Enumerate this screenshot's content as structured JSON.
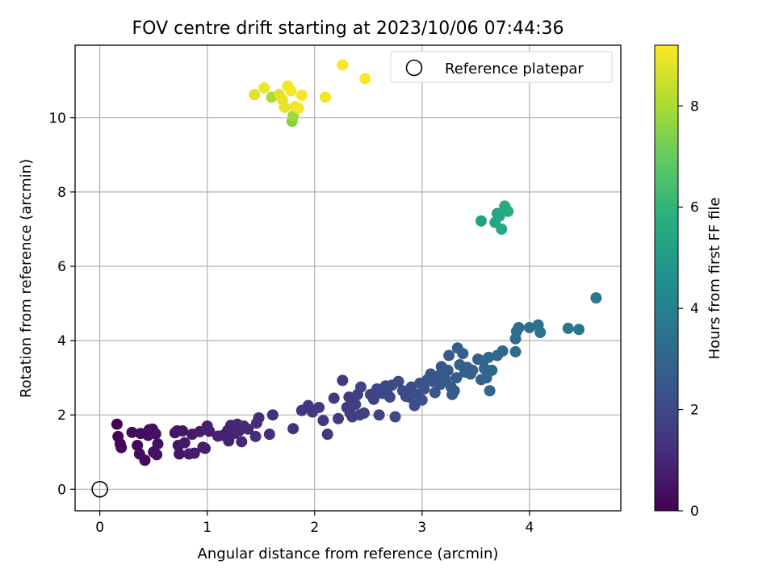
{
  "chart_data": {
    "type": "scatter",
    "title": "FOV centre drift starting at 2023/10/06 07:44:36",
    "xlabel": "Angular distance from reference (arcmin)",
    "ylabel": "Rotation from reference (arcmin)",
    "xlim": [
      -0.23,
      4.85
    ],
    "ylim": [
      -0.58,
      11.95
    ],
    "xticks": [
      0,
      1,
      2,
      3,
      4
    ],
    "yticks": [
      0,
      2,
      4,
      6,
      8,
      10
    ],
    "grid": true,
    "legend": {
      "placement": "top-right",
      "entries": [
        "Reference platepar"
      ]
    },
    "reference_point": {
      "x": 0,
      "y": 0,
      "label": "Reference platepar"
    },
    "colorbar": {
      "label": "Hours from first FF file",
      "colormap": "viridis",
      "range": [
        0,
        9.2
      ],
      "ticks": [
        0,
        2,
        4,
        6,
        8
      ]
    },
    "points": [
      [
        0.16,
        1.75,
        0.05
      ],
      [
        0.17,
        1.42,
        0.1
      ],
      [
        0.19,
        1.22,
        0.12
      ],
      [
        0.2,
        1.12,
        0.15
      ],
      [
        0.3,
        1.53,
        0.2
      ],
      [
        0.35,
        1.18,
        0.22
      ],
      [
        0.37,
        0.95,
        0.25
      ],
      [
        0.38,
        1.5,
        0.27
      ],
      [
        0.42,
        0.78,
        0.3
      ],
      [
        0.45,
        1.45,
        0.32
      ],
      [
        0.46,
        1.6,
        0.35
      ],
      [
        0.49,
        1.62,
        0.37
      ],
      [
        0.5,
        1.0,
        0.4
      ],
      [
        0.52,
        1.49,
        0.42
      ],
      [
        0.53,
        0.93,
        0.45
      ],
      [
        0.54,
        1.22,
        0.47
      ],
      [
        0.7,
        1.52,
        0.5
      ],
      [
        0.72,
        1.57,
        0.52
      ],
      [
        0.73,
        1.18,
        0.55
      ],
      [
        0.74,
        0.95,
        0.57
      ],
      [
        0.77,
        1.57,
        0.6
      ],
      [
        0.79,
        1.25,
        0.62
      ],
      [
        0.83,
        0.95,
        0.65
      ],
      [
        0.86,
        1.48,
        0.67
      ],
      [
        0.88,
        0.97,
        0.7
      ],
      [
        0.93,
        1.55,
        0.72
      ],
      [
        0.96,
        1.13,
        0.75
      ],
      [
        0.98,
        1.1,
        0.77
      ],
      [
        1.0,
        1.7,
        0.8
      ],
      [
        1.02,
        1.56,
        0.82
      ],
      [
        1.1,
        1.43,
        0.85
      ],
      [
        1.15,
        1.45,
        0.87
      ],
      [
        1.19,
        1.58,
        0.9
      ],
      [
        1.2,
        1.3,
        0.92
      ],
      [
        1.22,
        1.72,
        0.95
      ],
      [
        1.25,
        1.5,
        0.97
      ],
      [
        1.28,
        1.75,
        1.0
      ],
      [
        1.3,
        1.58,
        1.02
      ],
      [
        1.32,
        1.28,
        1.05
      ],
      [
        1.34,
        1.7,
        1.07
      ],
      [
        1.38,
        1.62,
        1.1
      ],
      [
        1.45,
        1.42,
        1.12
      ],
      [
        1.46,
        1.78,
        1.15
      ],
      [
        1.48,
        1.92,
        1.17
      ],
      [
        1.58,
        1.48,
        1.2
      ],
      [
        1.61,
        2.0,
        1.22
      ],
      [
        1.8,
        1.63,
        1.3
      ],
      [
        1.88,
        2.12,
        1.35
      ],
      [
        1.94,
        2.25,
        1.4
      ],
      [
        1.98,
        2.08,
        1.42
      ],
      [
        2.04,
        2.2,
        1.45
      ],
      [
        2.08,
        1.85,
        1.47
      ],
      [
        2.12,
        1.48,
        1.5
      ],
      [
        2.18,
        2.45,
        1.52
      ],
      [
        2.22,
        1.9,
        1.55
      ],
      [
        2.26,
        2.93,
        1.57
      ],
      [
        2.3,
        2.2,
        1.6
      ],
      [
        2.32,
        2.48,
        1.62
      ],
      [
        2.33,
        2.05,
        1.65
      ],
      [
        2.35,
        1.95,
        1.67
      ],
      [
        2.38,
        2.28,
        1.7
      ],
      [
        2.4,
        2.55,
        1.72
      ],
      [
        2.42,
        2.0,
        1.75
      ],
      [
        2.43,
        2.75,
        1.77
      ],
      [
        2.46,
        2.05,
        1.8
      ],
      [
        2.52,
        2.55,
        1.82
      ],
      [
        2.55,
        2.42,
        1.85
      ],
      [
        2.58,
        2.7,
        1.87
      ],
      [
        2.6,
        2.0,
        1.9
      ],
      [
        2.63,
        2.58,
        1.92
      ],
      [
        2.66,
        2.78,
        1.95
      ],
      [
        2.68,
        2.55,
        1.97
      ],
      [
        2.7,
        2.48,
        2.0
      ],
      [
        2.72,
        2.8,
        2.02
      ],
      [
        2.75,
        1.95,
        2.05
      ],
      [
        2.78,
        2.9,
        2.07
      ],
      [
        2.82,
        2.65,
        2.1
      ],
      [
        2.85,
        2.5,
        2.12
      ],
      [
        2.88,
        2.48,
        2.15
      ],
      [
        2.9,
        2.75,
        2.17
      ],
      [
        2.93,
        2.25,
        2.2
      ],
      [
        2.95,
        2.55,
        2.22
      ],
      [
        2.98,
        2.85,
        2.25
      ],
      [
        3.0,
        2.4,
        2.27
      ],
      [
        3.02,
        2.7,
        2.3
      ],
      [
        3.05,
        2.95,
        2.32
      ],
      [
        3.08,
        3.1,
        2.35
      ],
      [
        3.1,
        2.9,
        2.4
      ],
      [
        3.12,
        2.6,
        2.42
      ],
      [
        3.15,
        3.05,
        2.45
      ],
      [
        3.17,
        2.82,
        2.47
      ],
      [
        3.18,
        3.3,
        2.5
      ],
      [
        3.2,
        3.05,
        2.52
      ],
      [
        3.22,
        2.95,
        2.55
      ],
      [
        3.24,
        3.2,
        2.57
      ],
      [
        3.25,
        3.6,
        2.6
      ],
      [
        3.27,
        2.75,
        2.62
      ],
      [
        3.28,
        2.55,
        2.65
      ],
      [
        3.3,
        2.65,
        2.67
      ],
      [
        3.32,
        3.0,
        2.7
      ],
      [
        3.33,
        3.8,
        2.72
      ],
      [
        3.35,
        3.35,
        2.75
      ],
      [
        3.38,
        3.65,
        2.77
      ],
      [
        3.4,
        3.15,
        2.8
      ],
      [
        3.42,
        3.28,
        2.82
      ],
      [
        3.45,
        3.1,
        2.85
      ],
      [
        3.47,
        3.2,
        2.87
      ],
      [
        3.52,
        3.5,
        2.9
      ],
      [
        3.55,
        2.95,
        2.92
      ],
      [
        3.57,
        3.45,
        2.95
      ],
      [
        3.58,
        3.25,
        2.97
      ],
      [
        3.6,
        3.0,
        3.0
      ],
      [
        3.62,
        3.55,
        3.02
      ],
      [
        3.63,
        2.65,
        3.05
      ],
      [
        3.65,
        3.2,
        3.07
      ],
      [
        3.7,
        3.6,
        3.1
      ],
      [
        3.75,
        3.72,
        3.12
      ],
      [
        3.87,
        3.7,
        3.15
      ],
      [
        3.87,
        4.05,
        3.2
      ],
      [
        3.88,
        4.25,
        3.25
      ],
      [
        3.9,
        4.35,
        3.3
      ],
      [
        4.0,
        4.35,
        3.35
      ],
      [
        4.08,
        4.42,
        3.4
      ],
      [
        4.1,
        4.22,
        3.45
      ],
      [
        4.36,
        4.33,
        3.55
      ],
      [
        4.46,
        4.3,
        3.6
      ],
      [
        4.62,
        5.15,
        3.7
      ],
      [
        3.55,
        7.22,
        5.3
      ],
      [
        3.68,
        7.18,
        5.35
      ],
      [
        3.7,
        7.42,
        5.4
      ],
      [
        3.72,
        7.35,
        5.45
      ],
      [
        3.74,
        7.0,
        5.5
      ],
      [
        3.77,
        7.62,
        5.55
      ],
      [
        3.8,
        7.48,
        5.6
      ],
      [
        1.79,
        9.9,
        7.5
      ],
      [
        1.8,
        10.05,
        7.8
      ],
      [
        1.44,
        10.62,
        8.8
      ],
      [
        1.6,
        10.55,
        8.0
      ],
      [
        1.67,
        10.62,
        8.7
      ],
      [
        1.7,
        10.48,
        8.9
      ],
      [
        1.72,
        10.28,
        8.85
      ],
      [
        1.53,
        10.8,
        9.0
      ],
      [
        1.75,
        10.85,
        9.05
      ],
      [
        1.78,
        10.72,
        9.1
      ],
      [
        1.82,
        10.3,
        9.0
      ],
      [
        1.85,
        10.25,
        9.1
      ],
      [
        1.88,
        10.6,
        9.1
      ],
      [
        2.1,
        10.55,
        9.05
      ],
      [
        2.26,
        11.42,
        9.15
      ],
      [
        2.47,
        11.05,
        9.1
      ]
    ]
  }
}
